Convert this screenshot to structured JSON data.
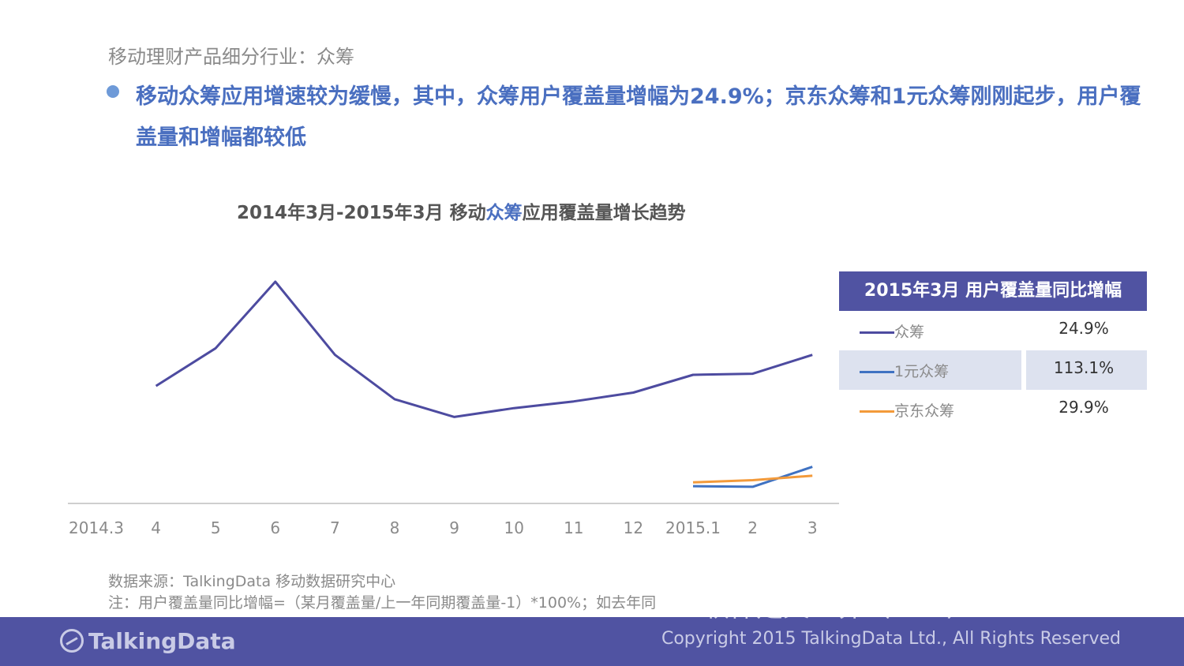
{
  "header": {
    "subtitle": "移动理财产品细分行业：众筹",
    "headline": "移动众筹应用增速较为缓慢，其中，众筹用户覆盖量增幅为24.9%；京东众筹和1元众筹刚刚起步，用户覆盖量和增幅都较低"
  },
  "chart_title": {
    "prefix": "2014年3月-2015年3月  移动",
    "highlight": "众筹",
    "suffix": "应用覆盖量增长趋势"
  },
  "chart_data": {
    "type": "line",
    "title": "2014年3月-2015年3月 移动众筹应用覆盖量增长趋势",
    "categories": [
      "2014.3",
      "4",
      "5",
      "6",
      "7",
      "8",
      "9",
      "10",
      "11",
      "12",
      "2015.1",
      "2",
      "3"
    ],
    "ylim": [
      0,
      100
    ],
    "grid": false,
    "legend_placement": "right",
    "series": [
      {
        "name": "众筹",
        "color": "#4d4ba0",
        "values": [
          null,
          53,
          70,
          100,
          67,
          47,
          39,
          43,
          46,
          50,
          58,
          58.5,
          67
        ]
      },
      {
        "name": "1元众筹",
        "color": "#3f72c2",
        "values": [
          null,
          null,
          null,
          null,
          null,
          null,
          null,
          null,
          null,
          null,
          7.8,
          7.5,
          16.5
        ]
      },
      {
        "name": "京东众筹",
        "color": "#f39a3a",
        "values": [
          null,
          null,
          null,
          null,
          null,
          null,
          null,
          null,
          null,
          null,
          9.5,
          10.5,
          12.5
        ]
      }
    ]
  },
  "legend_table": {
    "title": "2015年3月 用户覆盖量同比增幅",
    "rows": [
      {
        "name": "众筹",
        "value": "24.9%",
        "color": "#4d4ba0"
      },
      {
        "name": "1元众筹",
        "value": "113.1%",
        "color": "#3f72c2"
      },
      {
        "name": "京东众筹",
        "value": "29.9%",
        "color": "#f39a3a"
      }
    ]
  },
  "notes": {
    "source": "数据来源：TalkingData 移动数据研究中心",
    "note": "注：用户覆盖量同比增幅=（某月覆盖量/上一年同期覆盖量-1）*100%；如去年同"
  },
  "footer": {
    "logo_text": "TalkingData",
    "copyright": "Copyright 2015 TalkingData Ltd., All Rights Reserved",
    "watermark": "软件定义世界（SDX）"
  }
}
